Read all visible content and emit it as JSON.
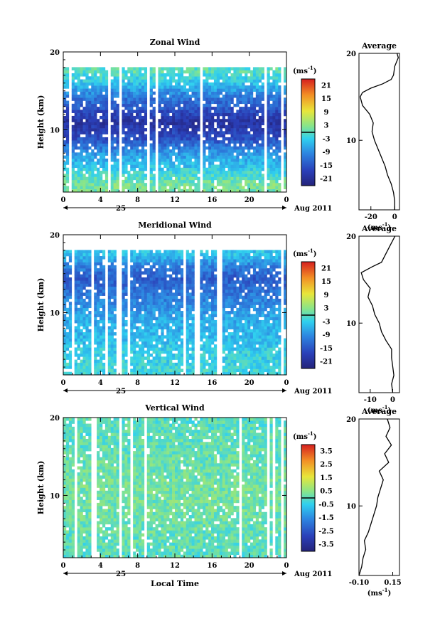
{
  "chart_data": [
    {
      "type": "heatmap",
      "panel": "main",
      "title": "Zonal Wind",
      "ylabel": "Height (km)",
      "ylim": [
        2,
        20
      ],
      "yticks": [
        "10",
        "20"
      ],
      "xlim": [
        0,
        24
      ],
      "xticks": [
        "0",
        "4",
        "8",
        "12",
        "16",
        "20",
        "0"
      ],
      "date_day": "25",
      "date_label": "Aug 2011",
      "colorbar": {
        "unit_base": "(ms",
        "unit_exp": "-1",
        "unit_close": ")",
        "ticks": [
          "21",
          "15",
          "9",
          "3",
          "-3",
          "-9",
          "-15",
          "-21"
        ],
        "range": [
          -24,
          24
        ]
      },
      "profile_by_height": [
        {
          "h": 3,
          "v": 2
        },
        {
          "h": 5,
          "v": -3
        },
        {
          "h": 7,
          "v": -8
        },
        {
          "h": 9,
          "v": -16
        },
        {
          "h": 11,
          "v": -20
        },
        {
          "h": 13,
          "v": -14
        },
        {
          "h": 14.5,
          "v": -10
        },
        {
          "h": 16,
          "v": -4
        },
        {
          "h": 17.5,
          "v": 0
        }
      ],
      "valid_range": [
        2,
        18.2
      ]
    },
    {
      "type": "line",
      "panel": "average",
      "title": "Average",
      "xticks": [
        "-20",
        "0"
      ],
      "xlim": [
        -30,
        4
      ],
      "ylim": [
        2,
        20
      ],
      "yticks": [
        "10",
        "20"
      ],
      "xlabel_base": "(ms",
      "xlabel_exp": "-1",
      "xlabel_close": ")",
      "points": [
        {
          "h": 2,
          "v": 0
        },
        {
          "h": 3,
          "v": 0
        },
        {
          "h": 4,
          "v": -1
        },
        {
          "h": 5,
          "v": -3
        },
        {
          "h": 6,
          "v": -6
        },
        {
          "h": 7,
          "v": -8
        },
        {
          "h": 8,
          "v": -11
        },
        {
          "h": 9,
          "v": -14
        },
        {
          "h": 10,
          "v": -17
        },
        {
          "h": 11,
          "v": -19
        },
        {
          "h": 12,
          "v": -18
        },
        {
          "h": 13,
          "v": -21
        },
        {
          "h": 14,
          "v": -27
        },
        {
          "h": 15,
          "v": -29
        },
        {
          "h": 15.5,
          "v": -27
        },
        {
          "h": 16,
          "v": -20
        },
        {
          "h": 16.5,
          "v": -10
        },
        {
          "h": 17,
          "v": -3
        },
        {
          "h": 17.5,
          "v": -1
        },
        {
          "h": 18.5,
          "v": 0
        },
        {
          "h": 19.5,
          "v": 3
        },
        {
          "h": 20,
          "v": 2
        }
      ]
    },
    {
      "type": "heatmap",
      "panel": "main",
      "title": "Meridional Wind",
      "ylabel": "Height (km)",
      "ylim": [
        2,
        20
      ],
      "yticks": [
        "10",
        "20"
      ],
      "xlim": [
        0,
        24
      ],
      "xticks": [
        "0",
        "4",
        "8",
        "12",
        "16",
        "20",
        "0"
      ],
      "date_day": "25",
      "date_label": "Aug 2011",
      "colorbar": {
        "unit_base": "(ms",
        "unit_exp": "-1",
        "unit_close": ")",
        "ticks": [
          "21",
          "15",
          "9",
          "3",
          "-3",
          "-9",
          "-15",
          "-21"
        ],
        "range": [
          -24,
          24
        ]
      },
      "profile_by_height": [
        {
          "h": 3,
          "v": -2
        },
        {
          "h": 5,
          "v": -3
        },
        {
          "h": 7,
          "v": -5
        },
        {
          "h": 9,
          "v": -6
        },
        {
          "h": 11,
          "v": -9
        },
        {
          "h": 13,
          "v": -12
        },
        {
          "h": 14.5,
          "v": -14
        },
        {
          "h": 16,
          "v": -10
        },
        {
          "h": 17.5,
          "v": -4
        }
      ],
      "valid_range": [
        2,
        18.2
      ]
    },
    {
      "type": "line",
      "panel": "average",
      "title": "Average",
      "xticks": [
        "-10",
        "0"
      ],
      "xlim": [
        -15,
        3
      ],
      "ylim": [
        2,
        20
      ],
      "yticks": [
        "10",
        "20"
      ],
      "xlabel_base": "(ms",
      "xlabel_exp": "-1",
      "xlabel_close": ")",
      "points": [
        {
          "h": 2,
          "v": 0
        },
        {
          "h": 3,
          "v": -0.5
        },
        {
          "h": 4,
          "v": 0.5
        },
        {
          "h": 5,
          "v": 0
        },
        {
          "h": 6,
          "v": -0.5
        },
        {
          "h": 7,
          "v": -0.5
        },
        {
          "h": 8,
          "v": -3
        },
        {
          "h": 9,
          "v": -5
        },
        {
          "h": 10,
          "v": -6
        },
        {
          "h": 11,
          "v": -8
        },
        {
          "h": 12,
          "v": -9
        },
        {
          "h": 13,
          "v": -11
        },
        {
          "h": 14,
          "v": -10
        },
        {
          "h": 15,
          "v": -13
        },
        {
          "h": 15.8,
          "v": -14
        },
        {
          "h": 16.5,
          "v": -9
        },
        {
          "h": 17,
          "v": -5
        },
        {
          "h": 18,
          "v": -3
        },
        {
          "h": 19,
          "v": -1
        },
        {
          "h": 19.5,
          "v": 0
        },
        {
          "h": 20,
          "v": 1
        }
      ]
    },
    {
      "type": "heatmap",
      "panel": "main",
      "title": "Vertical Wind",
      "ylabel": "Height (km)",
      "xlabel": "Local Time",
      "ylim": [
        2,
        20
      ],
      "yticks": [
        "10",
        "20"
      ],
      "xlim": [
        0,
        24
      ],
      "xticks": [
        "0",
        "4",
        "8",
        "12",
        "16",
        "20",
        "0"
      ],
      "date_day": "25",
      "date_label": "Aug 2011",
      "colorbar": {
        "unit_base": "(ms",
        "unit_exp": "-1",
        "unit_close": ")",
        "ticks": [
          "3.5",
          "2.5",
          "1.5",
          "0.5",
          "-0.5",
          "-1.5",
          "-2.5",
          "-3.5"
        ],
        "range": [
          -4,
          4
        ]
      },
      "profile_by_height": [
        {
          "h": 3,
          "v": 0
        },
        {
          "h": 7,
          "v": 0.2
        },
        {
          "h": 11,
          "v": 0.3
        },
        {
          "h": 15,
          "v": 0.1
        },
        {
          "h": 19,
          "v": 0
        }
      ],
      "valid_range": [
        2,
        20
      ]
    },
    {
      "type": "line",
      "panel": "average",
      "title": "Average",
      "xticks": [
        "-0.10",
        "0.15"
      ],
      "xlim": [
        -0.1,
        0.2
      ],
      "ylim": [
        2,
        20
      ],
      "yticks": [
        "10",
        "20"
      ],
      "xlabel_base": "(ms",
      "xlabel_exp": "-1",
      "xlabel_close": ")",
      "points": [
        {
          "h": 2,
          "v": -0.1
        },
        {
          "h": 3,
          "v": -0.08
        },
        {
          "h": 4,
          "v": -0.07
        },
        {
          "h": 5,
          "v": -0.05
        },
        {
          "h": 6,
          "v": -0.06
        },
        {
          "h": 7,
          "v": -0.03
        },
        {
          "h": 8,
          "v": -0.01
        },
        {
          "h": 9,
          "v": 0.01
        },
        {
          "h": 10,
          "v": 0.03
        },
        {
          "h": 11,
          "v": 0.04
        },
        {
          "h": 12,
          "v": 0.06
        },
        {
          "h": 13,
          "v": 0.08
        },
        {
          "h": 14,
          "v": 0.05
        },
        {
          "h": 15,
          "v": 0.12
        },
        {
          "h": 16,
          "v": 0.09
        },
        {
          "h": 17,
          "v": 0.14
        },
        {
          "h": 18,
          "v": 0.1
        },
        {
          "h": 19,
          "v": 0.13
        },
        {
          "h": 20,
          "v": 0.11
        }
      ]
    }
  ]
}
